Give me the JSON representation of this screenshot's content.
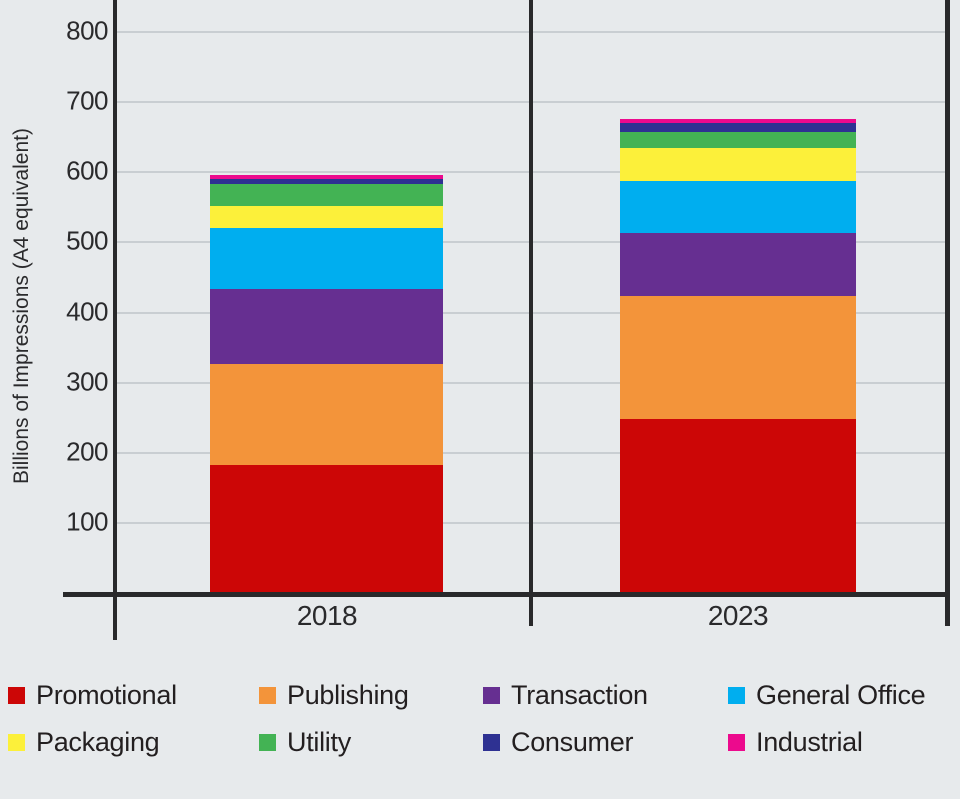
{
  "page": {
    "background": "#e7eaec"
  },
  "chart_data": {
    "type": "bar",
    "stacked": true,
    "title": "",
    "xlabel": "",
    "ylabel": "Billions of Impressions (A4 equivalent)",
    "categories": [
      "2018",
      "2023"
    ],
    "series": [
      {
        "name": "Promotional",
        "color": "#cc0606",
        "values": [
          182,
          248
        ]
      },
      {
        "name": "Publishing",
        "color": "#f3943a",
        "values": [
          144,
          176
        ]
      },
      {
        "name": "Transaction",
        "color": "#662f91",
        "values": [
          108,
          90
        ]
      },
      {
        "name": "General Office",
        "color": "#00aeef",
        "values": [
          87,
          74
        ]
      },
      {
        "name": "Packaging",
        "color": "#fcf03a",
        "values": [
          31,
          46
        ]
      },
      {
        "name": "Utility",
        "color": "#43b354",
        "values": [
          31,
          23
        ]
      },
      {
        "name": "Consumer",
        "color": "#2e3192",
        "values": [
          7,
          13
        ]
      },
      {
        "name": "Industrial",
        "color": "#ec0a8d",
        "values": [
          6,
          6
        ]
      }
    ],
    "ylim": [
      0,
      800
    ],
    "yticks": [
      100,
      200,
      300,
      400,
      500,
      600,
      700,
      800
    ],
    "grid": true,
    "legend_position": "bottom",
    "legend_rows": [
      [
        "Promotional",
        "Publishing",
        "Transaction",
        "General Office"
      ],
      [
        "Packaging",
        "Utility",
        "Consumer",
        "Industrial"
      ]
    ],
    "colors": {
      "axis": "#29292b",
      "gridline": "#c9ced2",
      "background": "#e7eaec"
    }
  }
}
